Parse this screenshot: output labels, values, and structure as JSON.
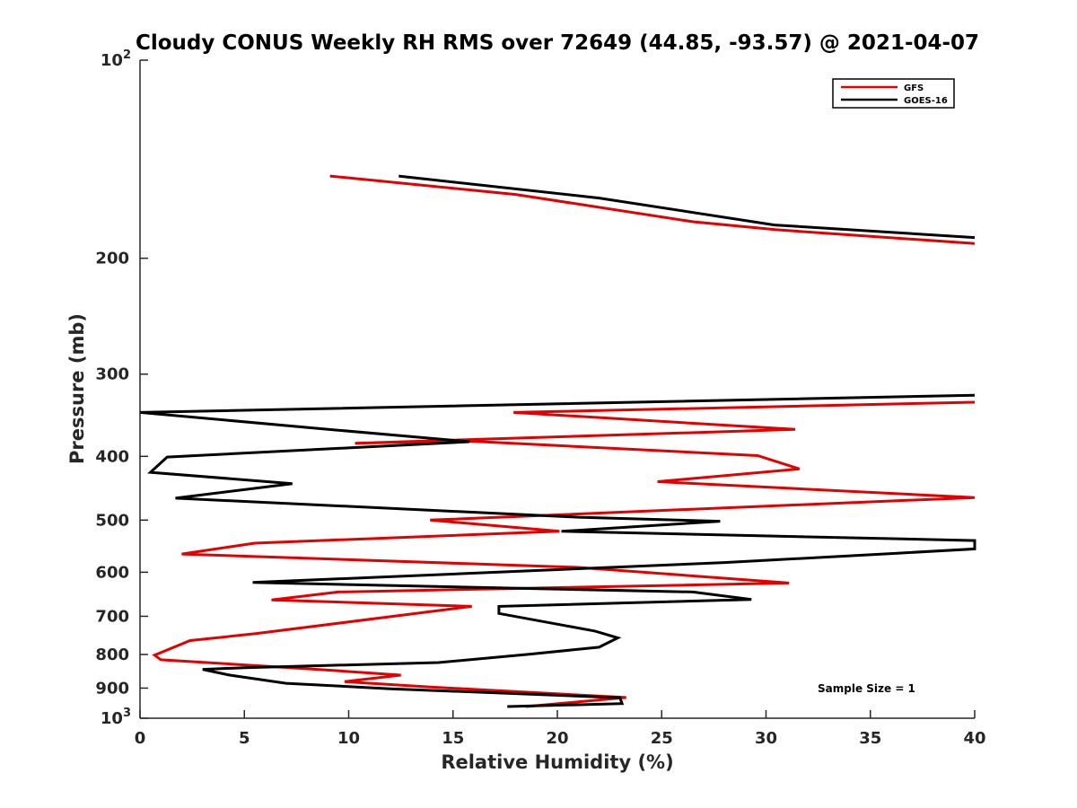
{
  "chart_data": {
    "type": "line",
    "title": "Cloudy CONUS Weekly RH RMS over 72649 (44.85, -93.57) @ 2021-04-07",
    "xlabel": "Relative Humidity (%)",
    "ylabel": "Pressure (mb)",
    "xlim": [
      0,
      40
    ],
    "ylim": [
      100,
      1000
    ],
    "y_scale": "log",
    "y_reversed": true,
    "x_ticks": [
      {
        "value": 0,
        "label": "0"
      },
      {
        "value": 5,
        "label": "5"
      },
      {
        "value": 10,
        "label": "10"
      },
      {
        "value": 15,
        "label": "15"
      },
      {
        "value": 20,
        "label": "20"
      },
      {
        "value": 25,
        "label": "25"
      },
      {
        "value": 30,
        "label": "30"
      },
      {
        "value": 35,
        "label": "35"
      },
      {
        "value": 40,
        "label": "40"
      }
    ],
    "y_ticks": [
      {
        "value": 100,
        "label": "10",
        "sup": "2"
      },
      {
        "value": 200,
        "label": "200"
      },
      {
        "value": 300,
        "label": "300"
      },
      {
        "value": 400,
        "label": "400"
      },
      {
        "value": 500,
        "label": "500"
      },
      {
        "value": 600,
        "label": "600"
      },
      {
        "value": 700,
        "label": "700"
      },
      {
        "value": 800,
        "label": "800"
      },
      {
        "value": 900,
        "label": "900"
      },
      {
        "value": 1000,
        "label": "10",
        "sup": "3"
      }
    ],
    "grid": false,
    "legend_position": "top-right",
    "annotation": "Sample Size = 1",
    "series": [
      {
        "name": "GFS",
        "color": "#e50000",
        "segments": [
          [
            [
              9.1,
              150
            ],
            [
              18,
              160
            ],
            [
              26.5,
              176
            ],
            [
              30.5,
              181
            ],
            [
              40,
              190
            ]
          ],
          [
            [
              40,
              331
            ],
            [
              17.9,
              343
            ],
            [
              31.4,
              364
            ],
            [
              10.3,
              382
            ],
            [
              15.6,
              379
            ],
            [
              29.6,
              399
            ],
            [
              31.6,
              418
            ],
            [
              24.8,
              437
            ],
            [
              40,
              462
            ],
            [
              13.9,
              500
            ],
            [
              20.1,
              520
            ],
            [
              5.5,
              542
            ],
            [
              2.0,
              563
            ],
            [
              21,
              590
            ],
            [
              31.1,
              623
            ],
            [
              9.5,
              643
            ],
            [
              6.3,
              661
            ],
            [
              15.9,
              676
            ],
            [
              13.4,
              692
            ],
            [
              5.5,
              744
            ],
            [
              2.4,
              762
            ],
            [
              0.7,
              802
            ],
            [
              1.0,
              815
            ],
            [
              8.5,
              843
            ],
            [
              12.5,
              860
            ],
            [
              9.8,
              880
            ],
            [
              14,
              897
            ],
            [
              23.3,
              930
            ],
            [
              18.5,
              960
            ]
          ]
        ]
      },
      {
        "name": "GOES-16",
        "color": "#000000",
        "segments": [
          [
            [
              12.4,
              150
            ],
            [
              22,
              162
            ],
            [
              30.4,
              178
            ],
            [
              40,
              186
            ]
          ],
          [
            [
              40,
              323
            ],
            [
              0,
              343
            ],
            [
              9.5,
              365
            ],
            [
              15.8,
              380
            ],
            [
              1.3,
              401
            ],
            [
              0.5,
              423
            ],
            [
              7.3,
              440
            ],
            [
              1.7,
              463
            ],
            [
              21,
              495
            ],
            [
              27.8,
              502
            ],
            [
              20.2,
              520
            ],
            [
              40,
              537
            ],
            [
              40,
              553
            ],
            [
              36,
              562
            ],
            [
              28,
              580
            ],
            [
              5.4,
              622
            ],
            [
              26.5,
              643
            ],
            [
              29.3,
              660
            ],
            [
              17.2,
              676
            ],
            [
              17.2,
              693
            ],
            [
              21.8,
              737
            ],
            [
              22.9,
              755
            ],
            [
              22,
              780
            ],
            [
              18.7,
              799
            ],
            [
              14.3,
              823
            ],
            [
              5,
              838
            ],
            [
              3,
              843
            ],
            [
              4.3,
              860
            ],
            [
              7,
              885
            ],
            [
              12,
              902
            ],
            [
              23,
              931
            ],
            [
              23.1,
              950
            ],
            [
              17.6,
              960
            ]
          ]
        ]
      }
    ]
  }
}
